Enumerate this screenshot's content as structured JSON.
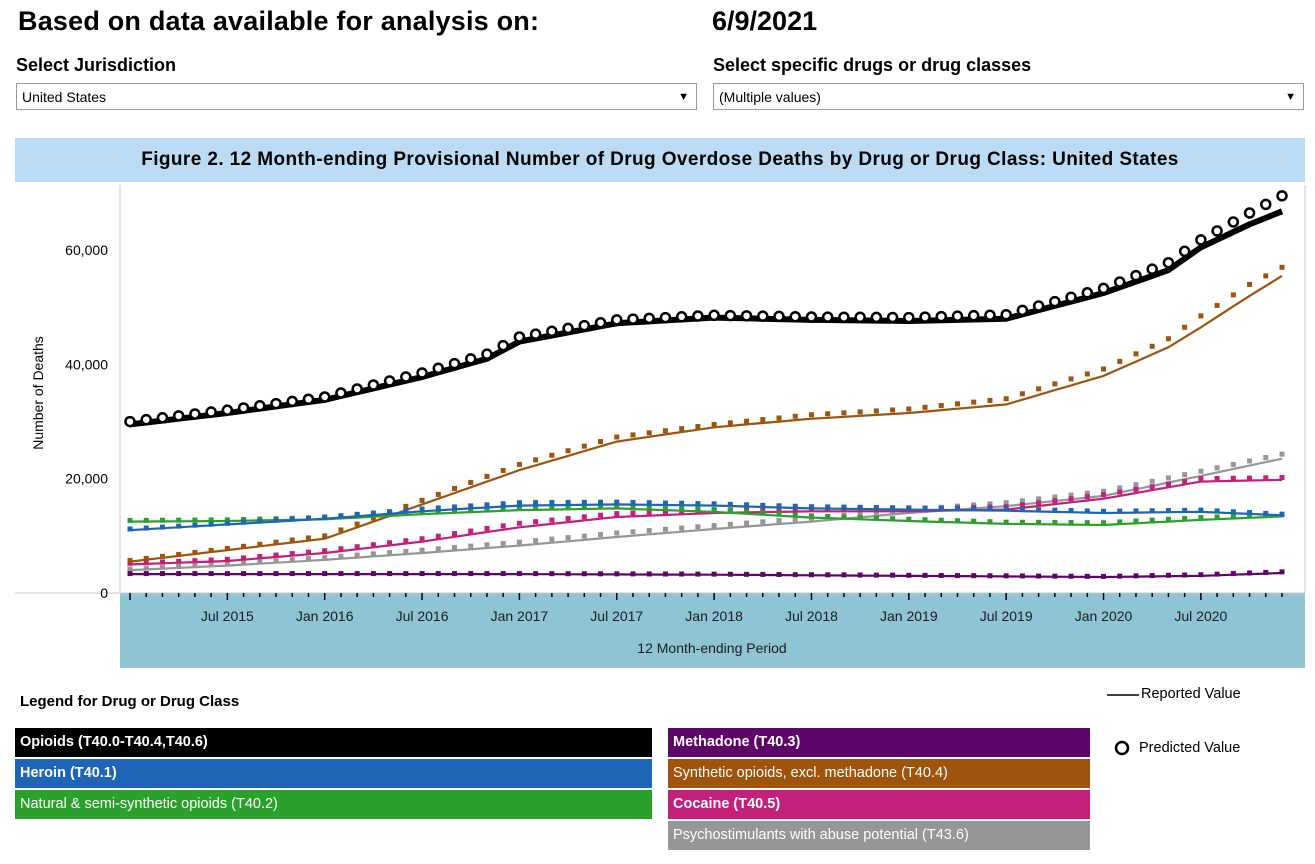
{
  "header": {
    "title": "Based on data available for analysis on:",
    "date": "6/9/2021"
  },
  "filters": {
    "jurisdiction": {
      "label": "Select Jurisdiction",
      "value": "United States"
    },
    "drugs": {
      "label": "Select specific drugs or drug classes",
      "value": "(Multiple values)"
    }
  },
  "legend": {
    "title": "Legend for Drug or Drug Class",
    "reported_label": "Reported Value",
    "predicted_label": "Predicted Value"
  },
  "chart_data": {
    "type": "line",
    "title": "Figure 2. 12 Month-ending Provisional Number of Drug Overdose Deaths by Drug or Drug Class: United States",
    "xlabel": "12 Month-ending Period",
    "ylabel": "Number of Deaths",
    "ylim": [
      0,
      70000
    ],
    "yticks": [
      0,
      20000,
      40000,
      60000
    ],
    "ytick_labels": [
      "0",
      "20,000",
      "40,000",
      "60,000"
    ],
    "x_start": "Jan 2015",
    "x_end": "Dec 2020",
    "xtick_labels": [
      "Jul 2015",
      "Jan 2016",
      "Jul 2016",
      "Jan 2017",
      "Jul 2017",
      "Jan 2018",
      "Jul 2018",
      "Jan 2019",
      "Jul 2019",
      "Jan 2020",
      "Jul 2020"
    ],
    "marker_note": "Predicted Value",
    "series": [
      {
        "name": "Opioids (T40.0-T40.4,T40.6)",
        "color": "#000000",
        "text_color": "#ffffff",
        "bold": true,
        "reported": [
          [
            0,
            29500
          ],
          [
            6,
            31500
          ],
          [
            12,
            33800
          ],
          [
            18,
            37800
          ],
          [
            22,
            41000
          ],
          [
            24,
            44000
          ],
          [
            30,
            47200
          ],
          [
            36,
            48200
          ],
          [
            42,
            47800
          ],
          [
            48,
            47600
          ],
          [
            54,
            48000
          ],
          [
            60,
            52500
          ],
          [
            64,
            56500
          ],
          [
            66,
            60500
          ],
          [
            69,
            64500
          ],
          [
            71,
            66800
          ]
        ],
        "predicted": [
          [
            0,
            30000
          ],
          [
            6,
            32000
          ],
          [
            12,
            34300
          ],
          [
            18,
            38500
          ],
          [
            22,
            41800
          ],
          [
            24,
            44800
          ],
          [
            30,
            47800
          ],
          [
            36,
            48600
          ],
          [
            42,
            48300
          ],
          [
            48,
            48200
          ],
          [
            54,
            48700
          ],
          [
            60,
            53300
          ],
          [
            64,
            57800
          ],
          [
            66,
            61800
          ],
          [
            69,
            66500
          ],
          [
            71,
            69500
          ]
        ]
      },
      {
        "name": "Heroin (T40.1)",
        "color": "#1f65b5",
        "text_color": "#ffffff",
        "bold": true,
        "reported": [
          [
            0,
            11000
          ],
          [
            6,
            12000
          ],
          [
            12,
            13000
          ],
          [
            18,
            14300
          ],
          [
            24,
            15300
          ],
          [
            30,
            15500
          ],
          [
            36,
            15300
          ],
          [
            42,
            14800
          ],
          [
            48,
            14600
          ],
          [
            54,
            14400
          ],
          [
            60,
            14000
          ],
          [
            66,
            14200
          ],
          [
            71,
            13600
          ]
        ],
        "predicted": [
          [
            0,
            11200
          ],
          [
            6,
            12200
          ],
          [
            12,
            13300
          ],
          [
            18,
            14700
          ],
          [
            24,
            15800
          ],
          [
            30,
            15900
          ],
          [
            36,
            15600
          ],
          [
            42,
            15100
          ],
          [
            48,
            14900
          ],
          [
            54,
            14700
          ],
          [
            60,
            14300
          ],
          [
            66,
            14500
          ],
          [
            71,
            13800
          ]
        ]
      },
      {
        "name": "Natural & semi-synthetic opioids (T40.2)",
        "color": "#2ca02c",
        "text_color": "#ffffff",
        "bold": false,
        "reported": [
          [
            0,
            12500
          ],
          [
            6,
            12600
          ],
          [
            12,
            12900
          ],
          [
            18,
            13800
          ],
          [
            24,
            14500
          ],
          [
            30,
            14800
          ],
          [
            36,
            14200
          ],
          [
            42,
            13200
          ],
          [
            48,
            12600
          ],
          [
            54,
            12100
          ],
          [
            60,
            11900
          ],
          [
            66,
            12800
          ],
          [
            71,
            13400
          ]
        ],
        "predicted": [
          [
            0,
            12700
          ],
          [
            6,
            12800
          ],
          [
            12,
            13200
          ],
          [
            18,
            14100
          ],
          [
            24,
            15000
          ],
          [
            30,
            15300
          ],
          [
            36,
            14600
          ],
          [
            42,
            13500
          ],
          [
            48,
            12900
          ],
          [
            54,
            12400
          ],
          [
            60,
            12300
          ],
          [
            66,
            13200
          ],
          [
            71,
            13700
          ]
        ]
      },
      {
        "name": "Methadone (T40.3)",
        "color": "#5e0469",
        "text_color": "#ffffff",
        "bold": true,
        "reported": [
          [
            0,
            3300
          ],
          [
            12,
            3300
          ],
          [
            24,
            3300
          ],
          [
            36,
            3200
          ],
          [
            48,
            3000
          ],
          [
            60,
            2800
          ],
          [
            66,
            3000
          ],
          [
            71,
            3500
          ]
        ],
        "predicted": [
          [
            0,
            3400
          ],
          [
            12,
            3400
          ],
          [
            24,
            3400
          ],
          [
            36,
            3300
          ],
          [
            48,
            3100
          ],
          [
            60,
            2900
          ],
          [
            66,
            3200
          ],
          [
            71,
            3700
          ]
        ]
      },
      {
        "name": "Synthetic opioids, excl. methadone (T40.4)",
        "color": "#9e540c",
        "text_color": "#ffffff",
        "bold": false,
        "reported": [
          [
            0,
            5500
          ],
          [
            6,
            7500
          ],
          [
            12,
            9500
          ],
          [
            18,
            15500
          ],
          [
            24,
            21500
          ],
          [
            30,
            26500
          ],
          [
            36,
            29000
          ],
          [
            42,
            30500
          ],
          [
            48,
            31500
          ],
          [
            54,
            33000
          ],
          [
            60,
            38000
          ],
          [
            64,
            43000
          ],
          [
            66,
            46500
          ],
          [
            69,
            52000
          ],
          [
            71,
            55500
          ]
        ],
        "predicted": [
          [
            0,
            5700
          ],
          [
            6,
            7800
          ],
          [
            12,
            10000
          ],
          [
            18,
            16200
          ],
          [
            24,
            22500
          ],
          [
            30,
            27300
          ],
          [
            36,
            29500
          ],
          [
            42,
            31200
          ],
          [
            48,
            32200
          ],
          [
            54,
            34000
          ],
          [
            60,
            39200
          ],
          [
            64,
            44500
          ],
          [
            66,
            48500
          ],
          [
            69,
            54000
          ],
          [
            71,
            57000
          ]
        ]
      },
      {
        "name": "Cocaine (T40.5)",
        "color": "#c41f7b",
        "text_color": "#ffffff",
        "bold": true,
        "reported": [
          [
            0,
            5000
          ],
          [
            6,
            5600
          ],
          [
            12,
            7000
          ],
          [
            18,
            9000
          ],
          [
            24,
            11500
          ],
          [
            30,
            13300
          ],
          [
            36,
            14000
          ],
          [
            42,
            14300
          ],
          [
            48,
            14300
          ],
          [
            54,
            14600
          ],
          [
            60,
            16500
          ],
          [
            66,
            19500
          ],
          [
            71,
            19800
          ]
        ],
        "predicted": [
          [
            0,
            5200
          ],
          [
            6,
            5900
          ],
          [
            12,
            7400
          ],
          [
            18,
            9500
          ],
          [
            24,
            12200
          ],
          [
            30,
            13900
          ],
          [
            36,
            14500
          ],
          [
            42,
            14700
          ],
          [
            48,
            14700
          ],
          [
            54,
            15100
          ],
          [
            60,
            17200
          ],
          [
            66,
            20000
          ],
          [
            71,
            20200
          ]
        ]
      },
      {
        "name": "Psychostimulants with abuse potential (T43.6)",
        "color": "#969696",
        "text_color": "#ffffff",
        "bold": false,
        "reported": [
          [
            0,
            4000
          ],
          [
            6,
            4800
          ],
          [
            12,
            5800
          ],
          [
            18,
            7000
          ],
          [
            24,
            8300
          ],
          [
            30,
            9800
          ],
          [
            36,
            11200
          ],
          [
            42,
            12500
          ],
          [
            48,
            14000
          ],
          [
            54,
            15200
          ],
          [
            60,
            17000
          ],
          [
            66,
            20500
          ],
          [
            71,
            23500
          ]
        ],
        "predicted": [
          [
            0,
            4200
          ],
          [
            6,
            5100
          ],
          [
            12,
            6200
          ],
          [
            18,
            7500
          ],
          [
            24,
            8900
          ],
          [
            30,
            10500
          ],
          [
            36,
            11800
          ],
          [
            42,
            13100
          ],
          [
            48,
            14600
          ],
          [
            54,
            15800
          ],
          [
            60,
            17800
          ],
          [
            66,
            21300
          ],
          [
            71,
            24300
          ]
        ]
      }
    ]
  }
}
